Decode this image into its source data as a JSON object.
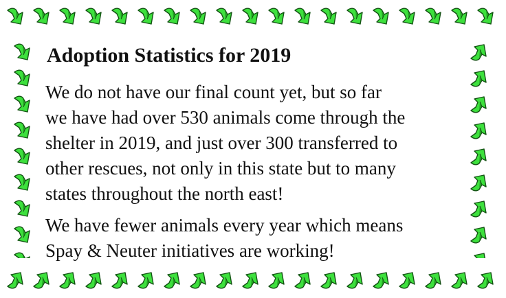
{
  "title": "Adoption Statistics for 2019",
  "paragraphs": [
    [
      "We do not have our final count yet, but so far",
      "we have had over 530 animals come through the",
      "shelter in 2019, and just over 300 transferred to",
      "other rescues, not only in this state but to many",
      "states throughout the north east!"
    ],
    [
      "We have fewer animals every year which means",
      "Spay & Neuter initiatives are working!"
    ]
  ]
}
